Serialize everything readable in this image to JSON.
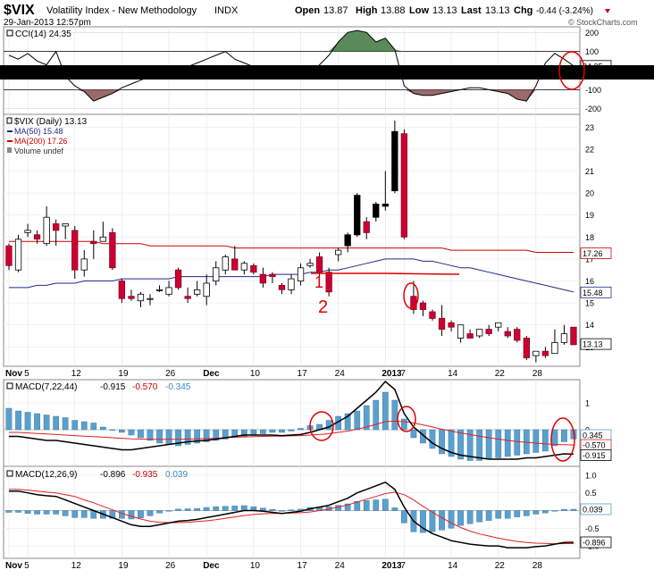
{
  "header": {
    "symbol": "$VIX",
    "name": "Volatility Index - New Methodology",
    "exchange": "INDX",
    "date": "29-Jan-2013 12:57pm",
    "watermark": "© StockCharts.com",
    "quote": {
      "open_label": "Open",
      "open": "13.87",
      "high_label": "High",
      "high": "13.88",
      "low_label": "Low",
      "low": "13.13",
      "last_label": "Last",
      "last": "13.13",
      "chg_label": "Chg",
      "chg": "-0.44 (-3.24%)"
    }
  },
  "colors": {
    "up": "#ffffff",
    "down": "#cc0033",
    "up_filled": "#000000",
    "ma50": "#1f2a8a",
    "ma200": "#cc0000",
    "macd_line": "#000000",
    "signal": "#e02020",
    "histogram": "#5aa0cf",
    "cci_pos": "#5a8a5a",
    "cci_neg": "#9a6a6a",
    "annotation": "#e00000"
  },
  "cci_panel": {
    "legend": "CCI(14) 24.35",
    "ticks": [
      "200",
      "100",
      "0",
      "-100",
      "-200"
    ],
    "tick_values": [
      200,
      100,
      0,
      -100,
      -200
    ],
    "value_label": "24.35"
  },
  "price_panel": {
    "legend": "$VIX (Daily) 13.13",
    "ma50_legend": "MA(50) 15.48",
    "ma200_legend": "MA(200) 17.26",
    "volume_legend": "Volume undef",
    "ticks": [
      "23",
      "22",
      "21",
      "20",
      "19",
      "18",
      "17",
      "16",
      "15",
      "14",
      "13"
    ],
    "tick_values": [
      23,
      22,
      21,
      20,
      19,
      18,
      17,
      16,
      15,
      14,
      13
    ],
    "ma200_label": "17.26",
    "ma50_label": "15.48",
    "last_label": "13.13"
  },
  "macd1_panel": {
    "legend_name": "MACD(7,22,44)",
    "legend_macd": "-0.915",
    "legend_signal": "-0.570",
    "legend_hist": "-0.345",
    "ticks": [
      "1",
      "0"
    ],
    "tick_values": [
      1,
      0
    ],
    "labels": [
      "0.345",
      "-0.570",
      "-0.915"
    ]
  },
  "macd2_panel": {
    "legend_name": "MACD(12,26,9)",
    "legend_macd": "-0.896",
    "legend_signal": "-0.935",
    "legend_hist": "0.039",
    "ticks": [
      "1.0",
      "0.5",
      "0.0",
      "-0.5",
      "-1.0"
    ],
    "tick_values": [
      1.0,
      0.5,
      0.0,
      -0.5,
      -1.0
    ],
    "labels": [
      "0.039",
      "-0.896"
    ]
  },
  "x_axis": {
    "labels": [
      "Nov",
      "5",
      "12",
      "19",
      "26",
      "Dec",
      "10",
      "17",
      "24",
      "2013",
      "7",
      "14",
      "22",
      "28"
    ],
    "label_index": [
      0,
      2,
      7,
      12,
      17,
      21,
      26,
      31,
      35,
      40,
      42,
      47,
      52,
      56
    ]
  },
  "annotations": {
    "note_1": "1",
    "note_2": "2"
  },
  "chart_data": {
    "type": "candlestick",
    "dates": [
      "Oct 31",
      "Nov 1",
      "Nov 2",
      "Nov 5",
      "Nov 6",
      "Nov 7",
      "Nov 8",
      "Nov 9",
      "Nov 12",
      "Nov 13",
      "Nov 14",
      "Nov 15",
      "Nov 16",
      "Nov 19",
      "Nov 20",
      "Nov 21",
      "Nov 23",
      "Nov 26",
      "Nov 27",
      "Nov 28",
      "Nov 29",
      "Nov 30",
      "Dec 3",
      "Dec 4",
      "Dec 5",
      "Dec 6",
      "Dec 7",
      "Dec 10",
      "Dec 11",
      "Dec 12",
      "Dec 13",
      "Dec 14",
      "Dec 17",
      "Dec 18",
      "Dec 19",
      "Dec 20",
      "Dec 21",
      "Dec 24",
      "Dec 26",
      "Dec 27",
      "Dec 28",
      "Dec 31",
      "Jan 2",
      "Jan 3",
      "Jan 4",
      "Jan 7",
      "Jan 8",
      "Jan 9",
      "Jan 10",
      "Jan 11",
      "Jan 14",
      "Jan 15",
      "Jan 16",
      "Jan 17",
      "Jan 18",
      "Jan 22",
      "Jan 23",
      "Jan 24",
      "Jan 25",
      "Jan 28",
      "Jan 29"
    ],
    "candles": [
      {
        "o": 17.6,
        "h": 17.7,
        "l": 16.5,
        "c": 16.7
      },
      {
        "o": 16.5,
        "h": 18.1,
        "l": 16.4,
        "c": 17.9
      },
      {
        "o": 18.2,
        "h": 18.6,
        "l": 18.0,
        "c": 18.3
      },
      {
        "o": 18.1,
        "h": 18.3,
        "l": 17.7,
        "c": 17.9
      },
      {
        "o": 17.7,
        "h": 19.4,
        "l": 17.6,
        "c": 18.9
      },
      {
        "o": 18.6,
        "h": 18.8,
        "l": 17.6,
        "c": 18.3
      },
      {
        "o": 18.5,
        "h": 18.6,
        "l": 17.9,
        "c": 18.6
      },
      {
        "o": 18.3,
        "h": 18.5,
        "l": 16.1,
        "c": 16.5
      },
      {
        "o": 16.5,
        "h": 17.4,
        "l": 16.2,
        "c": 17.0
      },
      {
        "o": 17.8,
        "h": 18.3,
        "l": 17.0,
        "c": 17.7
      },
      {
        "o": 17.8,
        "h": 18.7,
        "l": 17.8,
        "c": 18.0
      },
      {
        "o": 18.2,
        "h": 18.4,
        "l": 16.5,
        "c": 16.6
      },
      {
        "o": 16.0,
        "h": 16.1,
        "l": 15.0,
        "c": 15.2
      },
      {
        "o": 15.3,
        "h": 15.6,
        "l": 15.1,
        "c": 15.2
      },
      {
        "o": 15.1,
        "h": 15.5,
        "l": 14.8,
        "c": 15.4
      },
      {
        "o": 15.2,
        "h": 15.4,
        "l": 14.9,
        "c": 15.2
      },
      {
        "o": 15.6,
        "h": 15.8,
        "l": 15.5,
        "c": 15.6
      },
      {
        "o": 15.4,
        "h": 16.0,
        "l": 15.3,
        "c": 15.7
      },
      {
        "o": 16.5,
        "h": 16.6,
        "l": 15.6,
        "c": 15.7
      },
      {
        "o": 15.3,
        "h": 15.7,
        "l": 15.0,
        "c": 15.2
      },
      {
        "o": 15.4,
        "h": 16.0,
        "l": 15.3,
        "c": 15.6
      },
      {
        "o": 15.3,
        "h": 16.3,
        "l": 14.9,
        "c": 15.9
      },
      {
        "o": 16.0,
        "h": 16.9,
        "l": 15.8,
        "c": 16.6
      },
      {
        "o": 16.5,
        "h": 17.2,
        "l": 16.3,
        "c": 17.1
      },
      {
        "o": 17.0,
        "h": 17.6,
        "l": 16.5,
        "c": 16.5
      },
      {
        "o": 16.5,
        "h": 16.9,
        "l": 16.3,
        "c": 16.8
      },
      {
        "o": 16.7,
        "h": 16.8,
        "l": 16.3,
        "c": 16.4
      },
      {
        "o": 16.3,
        "h": 16.6,
        "l": 15.7,
        "c": 15.9
      },
      {
        "o": 16.3,
        "h": 16.4,
        "l": 15.9,
        "c": 16.2
      },
      {
        "o": 15.8,
        "h": 15.9,
        "l": 15.4,
        "c": 15.6
      },
      {
        "o": 15.6,
        "h": 16.3,
        "l": 15.4,
        "c": 16.1
      },
      {
        "o": 16.0,
        "h": 16.8,
        "l": 15.8,
        "c": 16.6
      },
      {
        "o": 16.7,
        "h": 17.0,
        "l": 16.6,
        "c": 16.8
      },
      {
        "o": 17.1,
        "h": 17.3,
        "l": 16.2,
        "c": 16.4
      },
      {
        "o": 16.4,
        "h": 16.6,
        "l": 15.3,
        "c": 15.5
      },
      {
        "o": 17.2,
        "h": 17.5,
        "l": 16.9,
        "c": 17.4
      },
      {
        "o": 17.6,
        "h": 18.2,
        "l": 17.3,
        "c": 18.1
      },
      {
        "o": 18.1,
        "h": 20.0,
        "l": 18.0,
        "c": 19.9
      },
      {
        "o": 18.7,
        "h": 18.9,
        "l": 17.9,
        "c": 18.2
      },
      {
        "o": 18.9,
        "h": 19.6,
        "l": 18.7,
        "c": 19.5
      },
      {
        "o": 19.4,
        "h": 21.0,
        "l": 19.2,
        "c": 19.5
      },
      {
        "o": 20.1,
        "h": 23.3,
        "l": 20.0,
        "c": 22.8
      },
      {
        "o": 22.7,
        "h": 22.9,
        "l": 17.9,
        "c": 18.0
      },
      {
        "o": 15.3,
        "h": 16.0,
        "l": 14.5,
        "c": 14.7
      },
      {
        "o": 15.0,
        "h": 15.1,
        "l": 14.4,
        "c": 14.7
      },
      {
        "o": 14.6,
        "h": 14.7,
        "l": 14.2,
        "c": 14.3
      },
      {
        "o": 14.3,
        "h": 14.9,
        "l": 13.5,
        "c": 13.8
      },
      {
        "o": 14.1,
        "h": 14.2,
        "l": 13.7,
        "c": 13.9
      },
      {
        "o": 13.4,
        "h": 14.0,
        "l": 13.2,
        "c": 14.0
      },
      {
        "o": 13.6,
        "h": 13.8,
        "l": 13.4,
        "c": 13.4
      },
      {
        "o": 13.5,
        "h": 13.8,
        "l": 13.4,
        "c": 13.8
      },
      {
        "o": 13.8,
        "h": 14.0,
        "l": 13.5,
        "c": 13.6
      },
      {
        "o": 13.9,
        "h": 14.1,
        "l": 13.7,
        "c": 14.1
      },
      {
        "o": 13.7,
        "h": 13.9,
        "l": 13.4,
        "c": 13.5
      },
      {
        "o": 13.8,
        "h": 13.9,
        "l": 13.2,
        "c": 13.3
      },
      {
        "o": 13.4,
        "h": 13.5,
        "l": 12.4,
        "c": 12.5
      },
      {
        "o": 12.6,
        "h": 12.8,
        "l": 12.3,
        "c": 12.8
      },
      {
        "o": 12.8,
        "h": 13.0,
        "l": 12.5,
        "c": 12.6
      },
      {
        "o": 12.7,
        "h": 13.8,
        "l": 12.7,
        "c": 13.2
      },
      {
        "o": 13.2,
        "h": 14.0,
        "l": 13.1,
        "c": 13.6
      },
      {
        "o": 13.9,
        "h": 13.9,
        "l": 13.1,
        "c": 13.1
      }
    ],
    "ma50": [
      15.7,
      15.7,
      15.7,
      15.8,
      15.8,
      15.9,
      15.9,
      15.9,
      16.0,
      16.0,
      16.0,
      16.0,
      16.1,
      16.1,
      16.1,
      16.1,
      16.1,
      16.1,
      16.2,
      16.2,
      16.2,
      16.2,
      16.2,
      16.2,
      16.2,
      16.2,
      16.2,
      16.2,
      16.3,
      16.3,
      16.3,
      16.3,
      16.4,
      16.4,
      16.5,
      16.5,
      16.6,
      16.7,
      16.8,
      16.9,
      17.0,
      17.0,
      17.0,
      17.0,
      16.9,
      16.9,
      16.8,
      16.7,
      16.6,
      16.6,
      16.5,
      16.4,
      16.3,
      16.2,
      16.1,
      16.0,
      15.9,
      15.8,
      15.7,
      15.6,
      15.5
    ],
    "ma200": [
      17.8,
      17.8,
      17.8,
      17.8,
      17.8,
      17.8,
      17.8,
      17.8,
      17.8,
      17.8,
      17.7,
      17.7,
      17.7,
      17.7,
      17.7,
      17.6,
      17.6,
      17.6,
      17.6,
      17.6,
      17.6,
      17.6,
      17.6,
      17.6,
      17.5,
      17.5,
      17.5,
      17.5,
      17.5,
      17.5,
      17.5,
      17.5,
      17.5,
      17.5,
      17.5,
      17.5,
      17.5,
      17.5,
      17.5,
      17.5,
      17.5,
      17.5,
      17.5,
      17.5,
      17.5,
      17.5,
      17.5,
      17.4,
      17.4,
      17.4,
      17.4,
      17.4,
      17.4,
      17.4,
      17.4,
      17.4,
      17.3,
      17.3,
      17.3,
      17.3,
      17.3
    ],
    "cci": [
      80,
      60,
      90,
      50,
      30,
      100,
      -30,
      -80,
      -110,
      -160,
      -140,
      -120,
      -90,
      -70,
      -50,
      -30,
      -20,
      -10,
      0,
      20,
      40,
      60,
      80,
      100,
      60,
      40,
      20,
      20,
      10,
      0,
      -20,
      -30,
      -10,
      30,
      80,
      150,
      200,
      210,
      200,
      150,
      170,
      110,
      -80,
      -120,
      -130,
      -130,
      -120,
      -110,
      -100,
      -90,
      -90,
      -100,
      -110,
      -120,
      -150,
      -160,
      -80,
      40,
      90,
      60,
      24
    ],
    "macd1": {
      "macd": [
        -0.25,
        -0.25,
        -0.3,
        -0.35,
        -0.4,
        -0.4,
        -0.45,
        -0.5,
        -0.55,
        -0.6,
        -0.65,
        -0.7,
        -0.75,
        -0.75,
        -0.7,
        -0.65,
        -0.6,
        -0.55,
        -0.5,
        -0.45,
        -0.42,
        -0.4,
        -0.35,
        -0.3,
        -0.25,
        -0.2,
        -0.2,
        -0.2,
        -0.2,
        -0.22,
        -0.2,
        -0.18,
        -0.1,
        0.0,
        0.1,
        0.3,
        0.5,
        0.8,
        1.1,
        1.4,
        1.8,
        1.5,
        0.6,
        0.1,
        -0.2,
        -0.5,
        -0.7,
        -0.85,
        -0.95,
        -1.0,
        -1.05,
        -1.1,
        -1.1,
        -1.1,
        -1.1,
        -1.05,
        -1.05,
        -1.0,
        -0.95,
        -0.9,
        -0.915
      ],
      "signal": [
        -0.1,
        -0.1,
        -0.12,
        -0.14,
        -0.16,
        -0.18,
        -0.2,
        -0.22,
        -0.24,
        -0.26,
        -0.28,
        -0.3,
        -0.32,
        -0.34,
        -0.35,
        -0.36,
        -0.36,
        -0.36,
        -0.36,
        -0.35,
        -0.34,
        -0.33,
        -0.32,
        -0.3,
        -0.28,
        -0.27,
        -0.26,
        -0.25,
        -0.24,
        -0.24,
        -0.23,
        -0.22,
        -0.2,
        -0.18,
        -0.15,
        -0.1,
        -0.05,
        0.02,
        0.1,
        0.2,
        0.3,
        0.32,
        0.3,
        0.25,
        0.18,
        0.1,
        0.02,
        -0.05,
        -0.12,
        -0.18,
        -0.24,
        -0.3,
        -0.35,
        -0.4,
        -0.44,
        -0.47,
        -0.5,
        -0.53,
        -0.55,
        -0.56,
        -0.57
      ],
      "hist": [
        0.8,
        0.7,
        0.65,
        0.6,
        0.55,
        0.5,
        0.45,
        0.35,
        0.3,
        0.25,
        0.1,
        0.0,
        -0.1,
        -0.2,
        -0.3,
        -0.4,
        -0.5,
        -0.55,
        -0.6,
        -0.55,
        -0.5,
        -0.45,
        -0.4,
        -0.35,
        -0.3,
        -0.25,
        -0.2,
        -0.15,
        -0.1,
        -0.1,
        -0.05,
        0.05,
        0.15,
        0.2,
        0.35,
        0.5,
        0.6,
        0.7,
        0.9,
        1.1,
        1.4,
        1.1,
        0.4,
        -0.3,
        -0.5,
        -0.7,
        -0.9,
        -1.0,
        -1.1,
        -1.15,
        -1.15,
        -1.1,
        -1.05,
        -1.0,
        -0.95,
        -0.9,
        -0.85,
        -0.8,
        -0.6,
        -0.45,
        -0.345
      ]
    },
    "macd2": {
      "macd": [
        0.55,
        0.55,
        0.5,
        0.45,
        0.42,
        0.4,
        0.3,
        0.2,
        0.1,
        0.0,
        -0.1,
        -0.2,
        -0.3,
        -0.4,
        -0.45,
        -0.45,
        -0.4,
        -0.35,
        -0.3,
        -0.28,
        -0.25,
        -0.2,
        -0.15,
        -0.1,
        -0.05,
        0.0,
        0.0,
        -0.02,
        -0.05,
        -0.08,
        -0.05,
        -0.02,
        0.05,
        0.1,
        0.15,
        0.25,
        0.35,
        0.5,
        0.6,
        0.7,
        0.8,
        0.6,
        0.1,
        -0.3,
        -0.5,
        -0.65,
        -0.75,
        -0.85,
        -0.9,
        -0.95,
        -0.98,
        -1.0,
        -1.0,
        -1.05,
        -1.05,
        -1.05,
        -1.02,
        -1.0,
        -0.95,
        -0.9,
        -0.896
      ],
      "signal": [
        0.6,
        0.6,
        0.58,
        0.55,
        0.52,
        0.5,
        0.45,
        0.4,
        0.3,
        0.22,
        0.12,
        0.02,
        -0.08,
        -0.16,
        -0.24,
        -0.3,
        -0.33,
        -0.34,
        -0.34,
        -0.33,
        -0.31,
        -0.29,
        -0.26,
        -0.22,
        -0.18,
        -0.14,
        -0.11,
        -0.09,
        -0.08,
        -0.08,
        -0.07,
        -0.06,
        -0.04,
        0.0,
        0.04,
        0.1,
        0.16,
        0.24,
        0.32,
        0.4,
        0.48,
        0.52,
        0.45,
        0.3,
        0.12,
        -0.05,
        -0.2,
        -0.35,
        -0.48,
        -0.58,
        -0.66,
        -0.72,
        -0.78,
        -0.83,
        -0.87,
        -0.9,
        -0.92,
        -0.93,
        -0.94,
        -0.935,
        -0.935
      ],
      "hist": [
        -0.05,
        -0.05,
        -0.08,
        -0.1,
        -0.1,
        -0.1,
        -0.15,
        -0.2,
        -0.2,
        -0.22,
        -0.22,
        -0.22,
        -0.22,
        -0.24,
        -0.21,
        -0.15,
        -0.07,
        -0.01,
        0.04,
        0.05,
        0.06,
        0.09,
        0.11,
        0.12,
        0.13,
        0.14,
        0.11,
        0.07,
        0.03,
        0.0,
        0.02,
        0.04,
        0.09,
        0.1,
        0.11,
        0.15,
        0.19,
        0.26,
        0.28,
        0.3,
        0.32,
        0.08,
        -0.35,
        -0.6,
        -0.62,
        -0.6,
        -0.55,
        -0.5,
        -0.42,
        -0.37,
        -0.32,
        -0.28,
        -0.22,
        -0.22,
        -0.18,
        -0.15,
        -0.1,
        -0.07,
        -0.01,
        0.035,
        0.039
      ]
    },
    "price_ylim": [
      12.2,
      23.5
    ],
    "cci_ylim": [
      -220,
      220
    ],
    "macd1_ylim": [
      -1.3,
      1.8
    ],
    "macd2_ylim": [
      -1.3,
      1.2
    ]
  }
}
